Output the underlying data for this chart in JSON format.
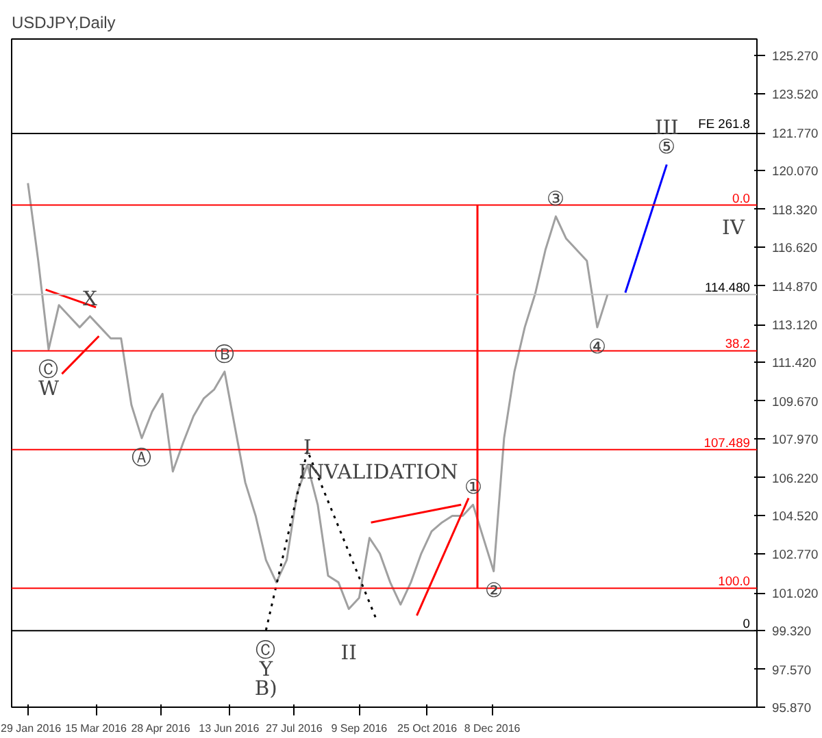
{
  "chart_data": {
    "type": "line",
    "title": "USDJPY,Daily",
    "xlim": [
      "2016-01-18",
      "2017-06-05"
    ],
    "ylim": [
      95.87,
      126.0
    ],
    "xticks": [
      {
        "value": "2016-01-29",
        "label": "29 Jan 2016"
      },
      {
        "value": "2016-03-15",
        "label": "15 Mar 2016"
      },
      {
        "value": "2016-04-28",
        "label": "28 Apr 2016"
      },
      {
        "value": "2016-06-13",
        "label": "13 Jun 2016"
      },
      {
        "value": "2016-07-27",
        "label": "27 Jul 2016"
      },
      {
        "value": "2016-09-09",
        "label": "9 Sep 2016"
      },
      {
        "value": "2016-10-25",
        "label": "25 Oct 2016"
      },
      {
        "value": "2016-12-08",
        "label": "8 Dec 2016"
      }
    ],
    "yticks": [
      {
        "value": 125.27,
        "label": "125.270"
      },
      {
        "value": 123.52,
        "label": "123.520"
      },
      {
        "value": 121.77,
        "label": "121.770"
      },
      {
        "value": 120.07,
        "label": "120.070"
      },
      {
        "value": 118.32,
        "label": "118.320"
      },
      {
        "value": 116.62,
        "label": "116.620"
      },
      {
        "value": 114.87,
        "label": "114.870"
      },
      {
        "value": 113.12,
        "label": "113.120"
      },
      {
        "value": 111.42,
        "label": "111.420"
      },
      {
        "value": 109.67,
        "label": "109.670"
      },
      {
        "value": 107.97,
        "label": "107.970"
      },
      {
        "value": 106.22,
        "label": "106.220"
      },
      {
        "value": 104.52,
        "label": "104.520"
      },
      {
        "value": 102.77,
        "label": "102.770"
      },
      {
        "value": 101.02,
        "label": "101.020"
      },
      {
        "value": 99.32,
        "label": "99.320"
      },
      {
        "value": 97.57,
        "label": "97.570"
      },
      {
        "value": 95.87,
        "label": "95.870"
      }
    ],
    "grid": false,
    "line_style": "solid",
    "series": [
      {
        "color": "#a0a0a0",
        "x": [
          "2016-01-29",
          "2016-02-05",
          "2016-02-12",
          "2016-02-19",
          "2016-02-26",
          "2016-03-04",
          "2016-03-11",
          "2016-03-18",
          "2016-03-25",
          "2016-04-01",
          "2016-04-08",
          "2016-04-15",
          "2016-04-22",
          "2016-04-29",
          "2016-05-06",
          "2016-05-13",
          "2016-05-20",
          "2016-05-27",
          "2016-06-03",
          "2016-06-10",
          "2016-06-17",
          "2016-06-24",
          "2016-07-01",
          "2016-07-08",
          "2016-07-15",
          "2016-07-22",
          "2016-07-29",
          "2016-08-05",
          "2016-08-12",
          "2016-08-19",
          "2016-08-26",
          "2016-09-02",
          "2016-09-09",
          "2016-09-16",
          "2016-09-23",
          "2016-09-30",
          "2016-10-07",
          "2016-10-14",
          "2016-10-21",
          "2016-10-28",
          "2016-11-04",
          "2016-11-11",
          "2016-11-18",
          "2016-11-25",
          "2016-12-02",
          "2016-12-09",
          "2016-12-16",
          "2016-12-23",
          "2016-12-30",
          "2017-01-06",
          "2017-01-13",
          "2017-01-20",
          "2017-01-27",
          "2017-02-03",
          "2017-02-10",
          "2017-02-17",
          "2017-02-24"
        ],
        "values": [
          119.5,
          116.0,
          112.0,
          114.0,
          113.5,
          113.0,
          113.5,
          113.0,
          112.5,
          112.5,
          109.5,
          108.0,
          109.2,
          110.0,
          106.5,
          107.8,
          109.0,
          109.8,
          110.2,
          111.0,
          108.5,
          106.0,
          104.5,
          102.5,
          101.5,
          102.5,
          105.5,
          106.8,
          105.0,
          101.8,
          101.5,
          100.3,
          100.8,
          103.5,
          102.8,
          101.5,
          100.5,
          101.5,
          102.8,
          103.8,
          104.2,
          104.5,
          104.5,
          105.0,
          103.5,
          102.0,
          108.0,
          111.0,
          113.0,
          114.5,
          116.5,
          118.0,
          117.0,
          116.5,
          116.0,
          113.0,
          114.48
        ]
      },
      {
        "color": "#ff0000",
        "x": [
          "2016-02-10",
          "2016-03-15"
        ],
        "values": [
          114.7,
          113.9
        ]
      },
      {
        "color": "#ff0000",
        "x": [
          "2016-02-21",
          "2016-03-17"
        ],
        "values": [
          110.9,
          112.6
        ]
      },
      {
        "color": "#ff0000",
        "x": [
          "2016-09-17",
          "2016-11-17"
        ],
        "values": [
          104.2,
          105.0
        ]
      },
      {
        "color": "#ff0000",
        "x": [
          "2016-10-18",
          "2016-11-22"
        ],
        "values": [
          100.0,
          105.3
        ]
      },
      {
        "color": "#ff0000",
        "x": [
          "2016-11-28",
          "2016-11-28"
        ],
        "values": [
          101.23,
          118.51
        ]
      },
      {
        "color": "#000000",
        "line_style": "dotted",
        "x": [
          "2016-07-08",
          "2016-08-05",
          "2016-09-21"
        ],
        "values": [
          99.34,
          107.44,
          99.77
        ]
      },
      {
        "color": "#0000ff",
        "x": [
          "2017-03-08",
          "2017-04-05"
        ],
        "values": [
          114.56,
          120.34
        ]
      }
    ],
    "ref_lines": [
      {
        "axis": "y",
        "value": 114.48,
        "label": "114.480",
        "color": "#c0c0c0"
      },
      {
        "axis": "y",
        "value": 121.74,
        "label": "FE 261.8",
        "color": "#000000"
      },
      {
        "axis": "y",
        "value": 118.51,
        "color": "#ff0000"
      },
      {
        "axis": "y",
        "value": 111.94,
        "color": "#ff0000"
      },
      {
        "axis": "y",
        "value": 107.489,
        "label": "107.489",
        "color": "#ff0000"
      },
      {
        "axis": "y",
        "value": 101.23,
        "color": "#ff0000"
      },
      {
        "axis": "y",
        "value": 99.32,
        "color": "#000000"
      }
    ],
    "annotations": [
      {
        "text": "0.0",
        "x": "2017-06-05",
        "y": 118.51
      },
      {
        "text": "38.2",
        "x": "2017-06-05",
        "y": 111.94
      },
      {
        "text": "100.0",
        "x": "2017-06-05",
        "y": 101.23
      },
      {
        "text": "0",
        "x": "2017-06-05",
        "y": 99.32
      },
      {
        "text": "X",
        "x": "2016-03-11",
        "y": 113.5
      },
      {
        "text": "Ⓒ",
        "x": "2016-02-12",
        "y": 112.0
      },
      {
        "text": "W",
        "x": "2016-02-12",
        "y": 112.0
      },
      {
        "text": "Ⓐ",
        "x": "2016-04-15",
        "y": 108.0
      },
      {
        "text": "Ⓑ",
        "x": "2016-06-10",
        "y": 111.0
      },
      {
        "text": "I",
        "x": "2016-08-05",
        "y": 106.8
      },
      {
        "text": "Ⓒ",
        "x": "2016-07-08",
        "y": 99.34
      },
      {
        "text": "Y",
        "x": "2016-07-08",
        "y": 99.34
      },
      {
        "text": "B)",
        "x": "2016-07-08",
        "y": 99.34
      },
      {
        "text": "II",
        "x": "2016-09-02",
        "y": 99.32
      },
      {
        "text": "INVALIDATION",
        "x": "2016-09-22",
        "y": 107.489
      },
      {
        "text": "①",
        "x": "2016-11-25",
        "y": 105.0
      },
      {
        "text": "②",
        "x": "2016-12-09",
        "y": 102.0
      },
      {
        "text": "③",
        "x": "2017-01-20",
        "y": 118.0
      },
      {
        "text": "④",
        "x": "2017-02-17",
        "y": 113.0
      },
      {
        "text": "⑤",
        "x": "2017-04-05",
        "y": 120.34
      },
      {
        "text": "III",
        "x": "2017-04-05",
        "y": 120.34
      },
      {
        "text": "IV",
        "x": "2017-05-20",
        "y": 118.51
      }
    ]
  }
}
